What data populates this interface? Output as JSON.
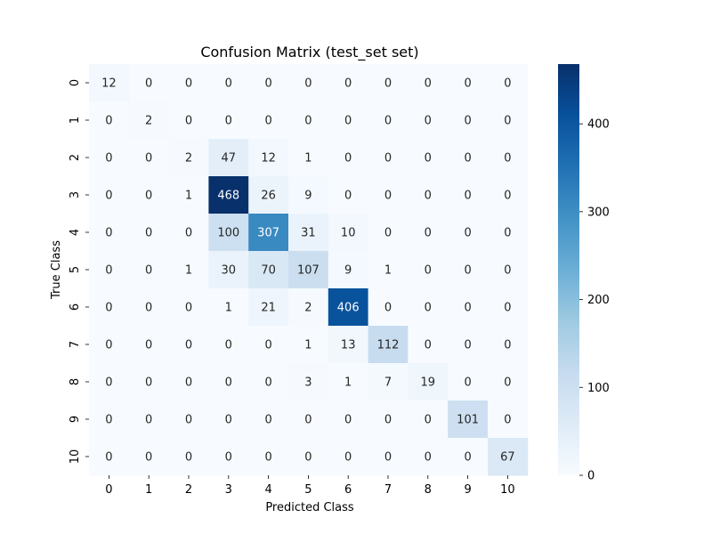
{
  "chart_data": {
    "type": "heatmap",
    "title": "Confusion Matrix (test_set set)",
    "xlabel": "Predicted Class",
    "ylabel": "True Class",
    "x_categories": [
      "0",
      "1",
      "2",
      "3",
      "4",
      "5",
      "6",
      "7",
      "8",
      "9",
      "10"
    ],
    "y_categories": [
      "0",
      "1",
      "2",
      "3",
      "4",
      "5",
      "6",
      "7",
      "8",
      "9",
      "10"
    ],
    "values": [
      [
        12,
        0,
        0,
        0,
        0,
        0,
        0,
        0,
        0,
        0,
        0
      ],
      [
        0,
        2,
        0,
        0,
        0,
        0,
        0,
        0,
        0,
        0,
        0
      ],
      [
        0,
        0,
        2,
        47,
        12,
        1,
        0,
        0,
        0,
        0,
        0
      ],
      [
        0,
        0,
        1,
        468,
        26,
        9,
        0,
        0,
        0,
        0,
        0
      ],
      [
        0,
        0,
        0,
        100,
        307,
        31,
        10,
        0,
        0,
        0,
        0
      ],
      [
        0,
        0,
        1,
        30,
        70,
        107,
        9,
        1,
        0,
        0,
        0
      ],
      [
        0,
        0,
        0,
        1,
        21,
        2,
        406,
        0,
        0,
        0,
        0
      ],
      [
        0,
        0,
        0,
        0,
        0,
        1,
        13,
        112,
        0,
        0,
        0
      ],
      [
        0,
        0,
        0,
        0,
        0,
        3,
        1,
        7,
        19,
        0,
        0
      ],
      [
        0,
        0,
        0,
        0,
        0,
        0,
        0,
        0,
        0,
        101,
        0
      ],
      [
        0,
        0,
        0,
        0,
        0,
        0,
        0,
        0,
        0,
        0,
        67
      ]
    ],
    "colorbar": {
      "min": 0,
      "max": 468,
      "ticks": [
        0,
        100,
        200,
        300,
        400
      ],
      "colormap": "Blues",
      "low_color": "#f7fbff",
      "high_color": "#08306b"
    }
  }
}
